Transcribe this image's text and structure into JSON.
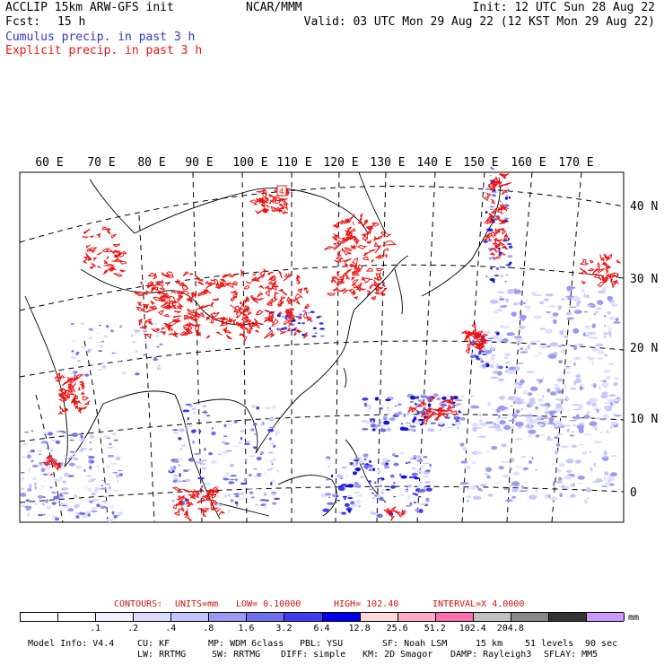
{
  "header": {
    "model_line": "ACCLIP 15km ARW-GFS init",
    "fcst_label": "Fcst:",
    "fcst_value": "15 h",
    "center": "NCAR/MMM",
    "init": "Init: 12 UTC Sun 28 Aug 22",
    "valid": "Valid: 03 UTC Mon 29 Aug 22 (12 KST Mon 29 Aug 22)",
    "cumulus_legend": "Cumulus precip. in past 3 h",
    "explicit_legend": "Explicit precip. in past 3 h"
  },
  "colors": {
    "cumulus": "#3333cc",
    "explicit": "#ee1111"
  },
  "map": {
    "lon_labels": [
      "60 E",
      "70 E",
      "80 E",
      "90 E",
      "100 E",
      "110 E",
      "120 E",
      "130 E",
      "140 E",
      "150 E",
      "160 E",
      "170 E"
    ],
    "lat_labels": [
      "40 N",
      "30 N",
      "20 N",
      "10 N",
      "0"
    ],
    "heavy_point_label": "4"
  },
  "contours": {
    "label": "CONTOURS:",
    "units": "UNITS=mm",
    "low": "LOW= 0.10000",
    "high": "HIGH= 102.40",
    "interval": "INTERVAL=X 4.0000"
  },
  "colorbar": {
    "colors": [
      "#ffffff",
      "#ffffff",
      "#f0f0ff",
      "#dcdcff",
      "#c4c4ff",
      "#9a9af5",
      "#6f6fef",
      "#3c3cf0",
      "#0000ee",
      "#ffd8d8",
      "#ffa8c8",
      "#ff6fb0",
      "#c0c0c0",
      "#888888",
      "#333333",
      "#cc99ff"
    ],
    "ticks": [
      ".1",
      ".2",
      ".4",
      ".8",
      "1.6",
      "3.2",
      "6.4",
      "12.8",
      "25.6",
      "51.2",
      "102.4",
      "204.8"
    ],
    "unit": "mm"
  },
  "footer": {
    "line1": [
      "Model Info: V4.4",
      "CU: KF",
      "MP: WDM 6class",
      "PBL: YSU",
      "SF: Noah LSM",
      "15 km",
      "51 levels",
      "90 sec"
    ],
    "line2": [
      "LW: RRTMG",
      "SW: RRTMG",
      "DIFF: simple",
      "KM: 2D Smagor",
      "DAMP: Rayleigh3",
      "SFLAY: MM5"
    ]
  }
}
